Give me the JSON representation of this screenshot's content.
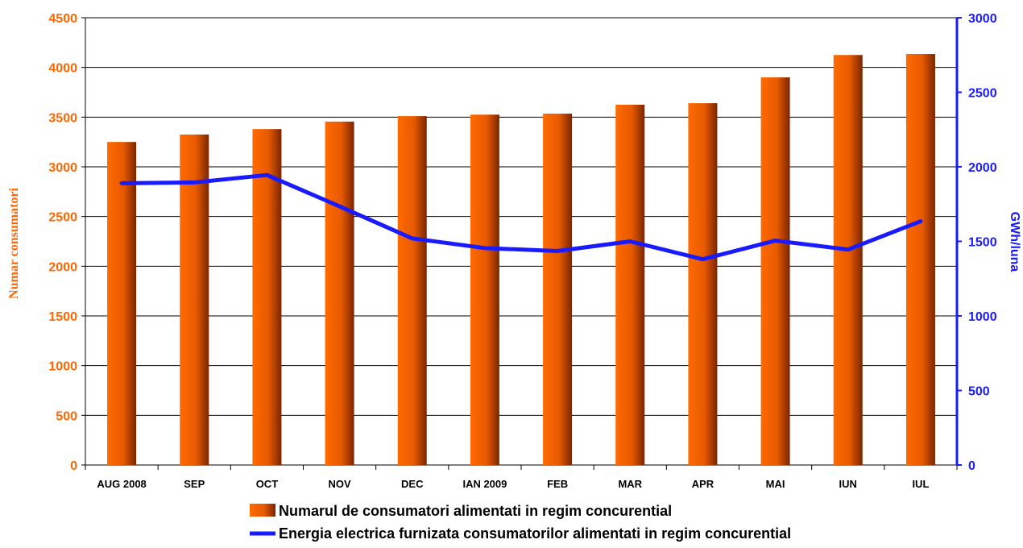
{
  "chart_data": {
    "type": "bar",
    "categories": [
      "AUG 2008",
      "SEP",
      "OCT",
      "NOV",
      "DEC",
      "IAN 2009",
      "FEB",
      "MAR",
      "APR",
      "MAI",
      "IUN",
      "IUL"
    ],
    "series": [
      {
        "name": "Numarul de consumatori alimentati in regim concurential",
        "type": "bar",
        "axis": "left",
        "color": "#ff6600",
        "values": [
          3250,
          3325,
          3380,
          3455,
          3510,
          3525,
          3535,
          3625,
          3640,
          3900,
          4125,
          4135
        ]
      },
      {
        "name": "Energia electrica furnizata consumatorilor alimentati in regim concurential",
        "type": "line",
        "axis": "right",
        "color": "#1a1aff",
        "values": [
          1890,
          1895,
          1945,
          1735,
          1520,
          1455,
          1435,
          1500,
          1380,
          1505,
          1445,
          1635
        ]
      }
    ],
    "ylabel": "Numar consumatori",
    "ylabel_right": "GWh/luna",
    "ylim": [
      0,
      4500
    ],
    "ylim_right": [
      0,
      3000
    ],
    "yticks": [
      "0",
      "500",
      "1000",
      "1500",
      "2000",
      "2500",
      "3000",
      "3500",
      "4000",
      "4500"
    ],
    "yticks_right": [
      "0",
      "500",
      "1000",
      "1500",
      "2000",
      "2500",
      "3000"
    ],
    "grid": true,
    "legend_position": "bottom"
  }
}
